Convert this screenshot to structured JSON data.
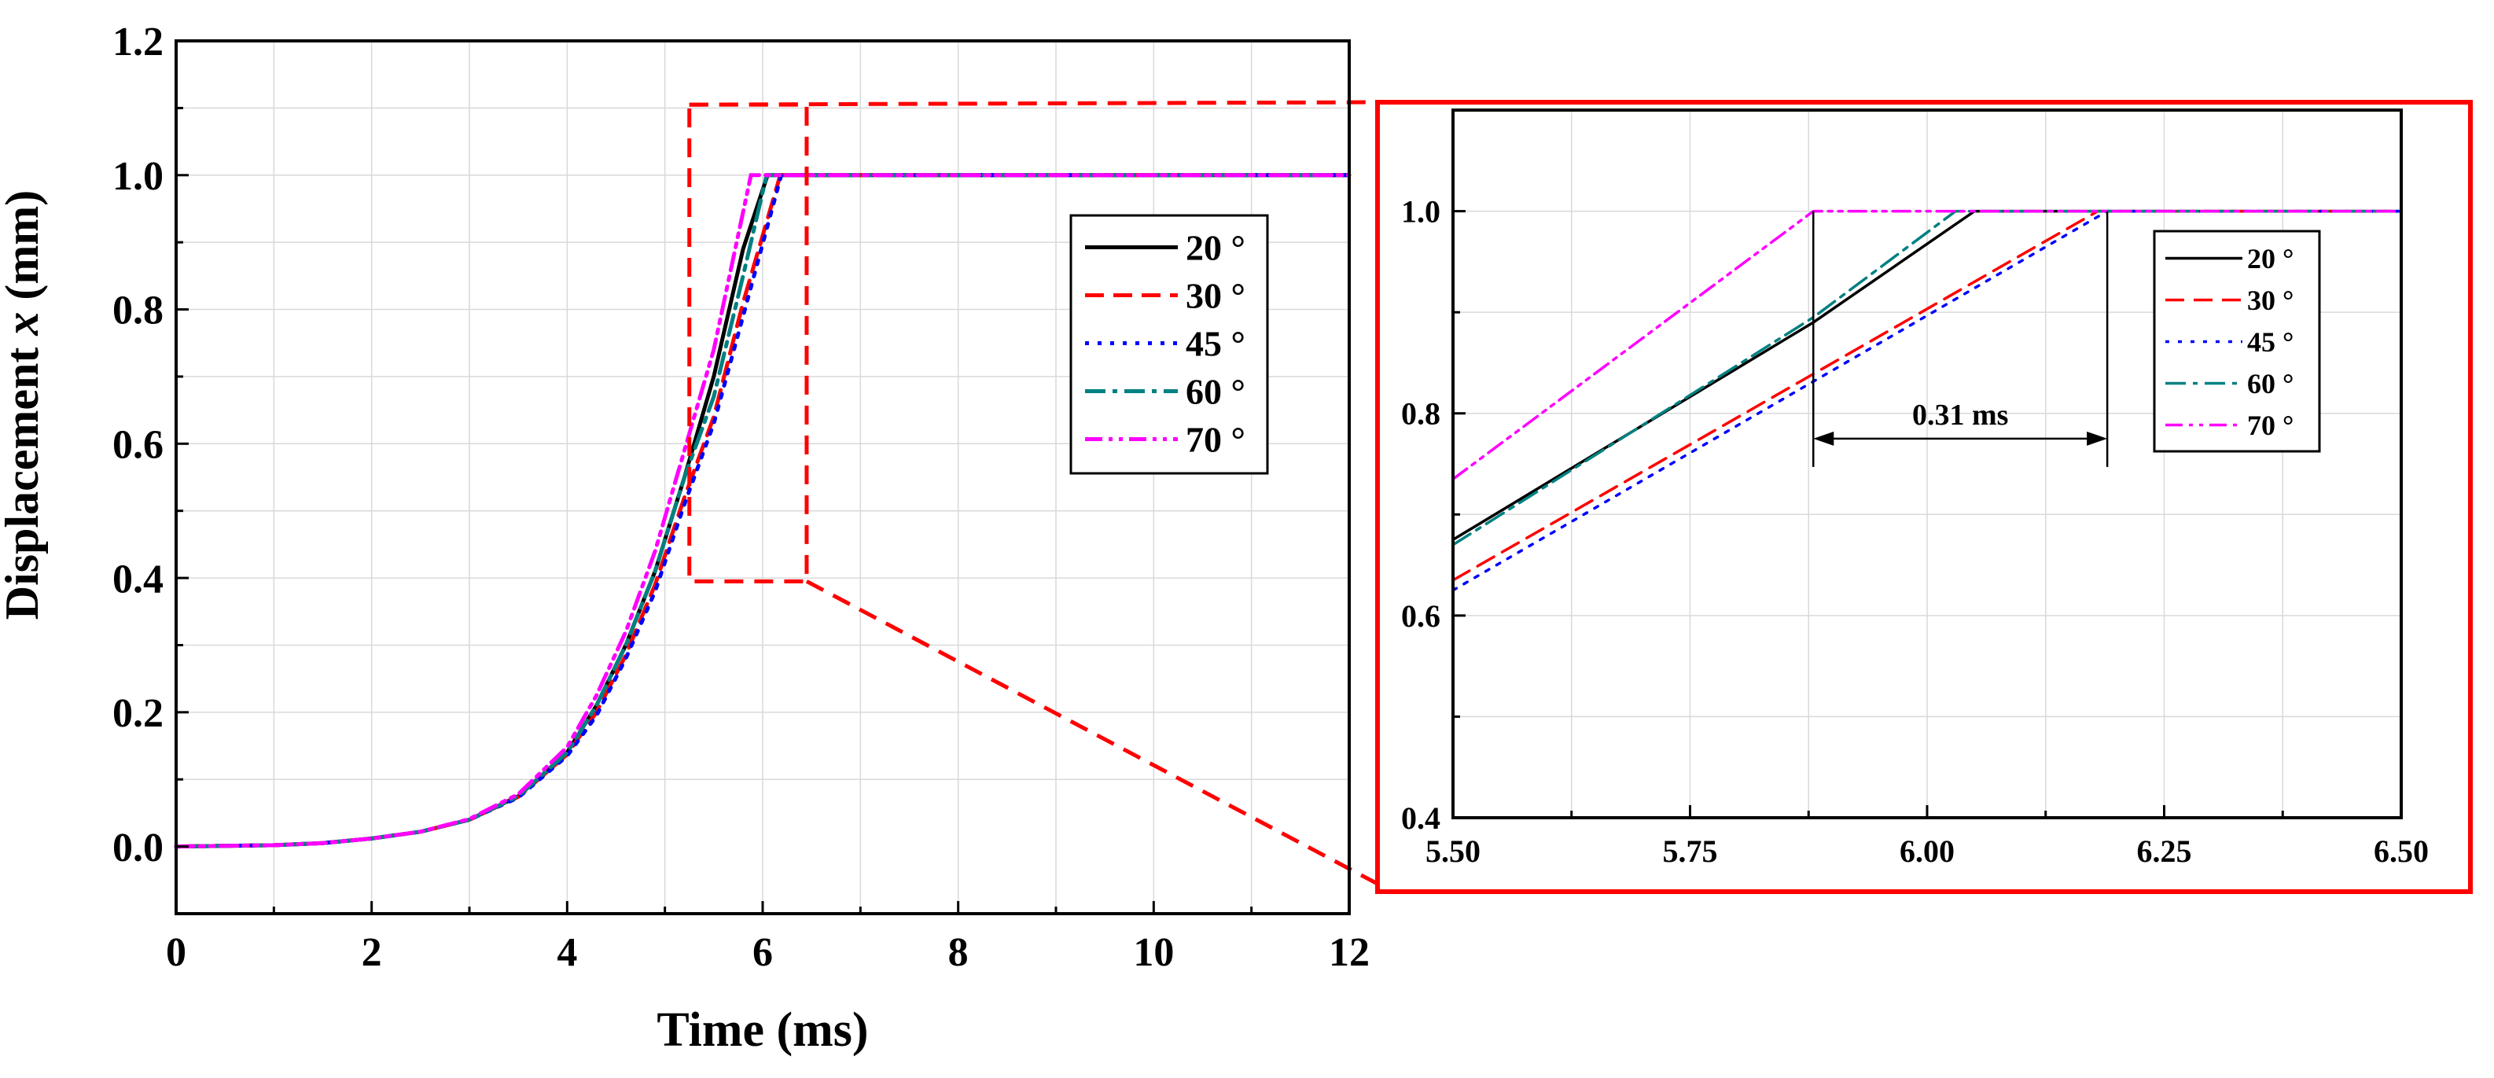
{
  "chart_data": [
    {
      "type": "line",
      "name": "main",
      "title": "",
      "xlabel": "Time (ms)",
      "ylabel_prefix": "Displacement ",
      "ylabel_var": "x",
      "ylabel_suffix": " (mm)",
      "xlim": [
        0,
        12
      ],
      "ylim": [
        -0.1,
        1.2
      ],
      "xticks": [
        0,
        2,
        4,
        6,
        8,
        10,
        12
      ],
      "xtick_labels": [
        "0",
        "2",
        "4",
        "6",
        "8",
        "10",
        "12"
      ],
      "yticks": [
        0.0,
        0.2,
        0.4,
        0.6,
        0.8,
        1.0,
        1.2
      ],
      "ytick_labels": [
        "0.0",
        "0.2",
        "0.4",
        "0.6",
        "0.8",
        "1.0",
        "1.2"
      ],
      "grid": true,
      "legend_position": "center-right",
      "series": [
        {
          "name": "20 °",
          "color": "#000000",
          "dash": "solid",
          "x": [
            0,
            1,
            1.5,
            2,
            2.5,
            3,
            3.5,
            4,
            4.3,
            4.6,
            4.9,
            5.2,
            5.5,
            5.8,
            6.05,
            12
          ],
          "y": [
            0,
            0.002,
            0.005,
            0.012,
            0.022,
            0.04,
            0.075,
            0.14,
            0.21,
            0.3,
            0.41,
            0.55,
            0.7,
            0.89,
            1.0,
            1.0
          ]
        },
        {
          "name": "30 °",
          "color": "#ff0000",
          "dash": "long",
          "x": [
            0,
            1,
            1.5,
            2,
            2.5,
            3,
            3.5,
            4,
            4.3,
            4.6,
            4.9,
            5.2,
            5.5,
            5.8,
            6.18,
            12
          ],
          "y": [
            0,
            0.002,
            0.005,
            0.012,
            0.022,
            0.04,
            0.074,
            0.137,
            0.2,
            0.285,
            0.39,
            0.52,
            0.64,
            0.81,
            1.0,
            1.0
          ]
        },
        {
          "name": "45 °",
          "color": "#0000ff",
          "dash": "dot",
          "x": [
            0,
            1,
            1.5,
            2,
            2.5,
            3,
            3.5,
            4,
            4.3,
            4.6,
            4.9,
            5.2,
            5.5,
            5.8,
            6.19,
            12
          ],
          "y": [
            0,
            0.002,
            0.005,
            0.012,
            0.022,
            0.04,
            0.073,
            0.135,
            0.195,
            0.28,
            0.38,
            0.51,
            0.63,
            0.79,
            1.0,
            1.0
          ]
        },
        {
          "name": "60 °",
          "color": "#008080",
          "dash": "dashdot",
          "x": [
            0,
            1,
            1.5,
            2,
            2.5,
            3,
            3.5,
            4,
            4.3,
            4.6,
            4.9,
            5.2,
            5.5,
            5.8,
            6.04,
            12
          ],
          "y": [
            0,
            0.002,
            0.005,
            0.012,
            0.022,
            0.04,
            0.075,
            0.14,
            0.21,
            0.3,
            0.41,
            0.55,
            0.67,
            0.85,
            1.0,
            1.0
          ]
        },
        {
          "name": "70 °",
          "color": "#ff00ff",
          "dash": "dashdotdot",
          "x": [
            0,
            1,
            1.5,
            2,
            2.5,
            3,
            3.5,
            4,
            4.3,
            4.6,
            4.9,
            5.2,
            5.5,
            5.88,
            12
          ],
          "y": [
            0,
            0.002,
            0.005,
            0.012,
            0.022,
            0.041,
            0.078,
            0.148,
            0.225,
            0.32,
            0.44,
            0.59,
            0.74,
            1.0,
            1.0
          ]
        }
      ],
      "zoom_region": {
        "x": [
          5.25,
          6.45
        ],
        "y": [
          0.395,
          1.105
        ]
      }
    },
    {
      "type": "line",
      "name": "inset",
      "title": "",
      "xlabel": "",
      "ylabel": "",
      "xlim": [
        5.5,
        6.5
      ],
      "ylim": [
        0.4,
        1.1
      ],
      "xticks": [
        5.5,
        5.75,
        6.0,
        6.25,
        6.5
      ],
      "xtick_labels": [
        "5.50",
        "5.75",
        "6.00",
        "6.25",
        "6.50"
      ],
      "yticks": [
        0.4,
        0.6,
        0.8,
        1.0
      ],
      "ytick_labels": [
        "0.4",
        "0.6",
        "0.8",
        "1.0"
      ],
      "grid": true,
      "legend_position": "center-right",
      "series": [
        {
          "name": "20 °",
          "color": "#000000",
          "dash": "solid",
          "x": [
            5.5,
            5.88,
            6.05,
            6.5
          ],
          "y": [
            0.675,
            0.89,
            1.0,
            1.0
          ]
        },
        {
          "name": "30 °",
          "color": "#ff0000",
          "dash": "long",
          "x": [
            5.5,
            6.18,
            6.5
          ],
          "y": [
            0.635,
            1.0,
            1.0
          ]
        },
        {
          "name": "45 °",
          "color": "#0000ff",
          "dash": "dot",
          "x": [
            5.5,
            6.19,
            6.5
          ],
          "y": [
            0.625,
            1.0,
            1.0
          ]
        },
        {
          "name": "60 °",
          "color": "#008080",
          "dash": "dashdot",
          "x": [
            5.5,
            5.88,
            6.03,
            6.5
          ],
          "y": [
            0.67,
            0.895,
            1.0,
            1.0
          ]
        },
        {
          "name": "70 °",
          "color": "#ff00ff",
          "dash": "dashdotdot",
          "x": [
            5.5,
            5.88,
            6.5
          ],
          "y": [
            0.735,
            1.0,
            1.0
          ]
        }
      ],
      "annotations": [
        {
          "text": "0.31 ms",
          "x_start": 5.88,
          "x_end": 6.19,
          "y": 0.775
        }
      ]
    }
  ],
  "colors": {
    "zoom_frame": "#ff0000",
    "grid": "#d9d9d9",
    "axis": "#000000"
  }
}
